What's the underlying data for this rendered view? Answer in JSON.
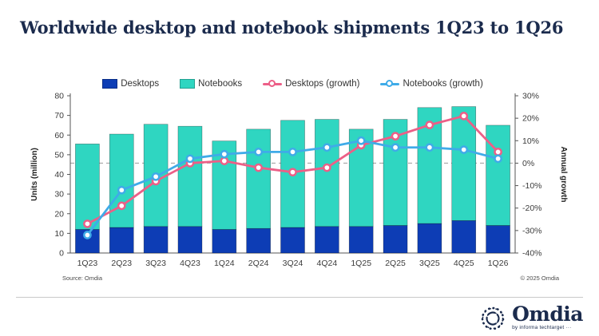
{
  "title": "Worldwide desktop and notebook shipments 1Q23 to 1Q26",
  "source_note": "Source: Omdia",
  "copyright_note": "© 2025 Omdia",
  "logo": {
    "name": "Omdia",
    "tagline": "by informa techtarget ···"
  },
  "legend": [
    {
      "label": "Desktops",
      "marker": "square",
      "color_key": "desktops"
    },
    {
      "label": "Notebooks",
      "marker": "square",
      "color_key": "notebooks"
    },
    {
      "label": "Desktops (growth)",
      "marker": "line-circle",
      "color_key": "desktops_growth"
    },
    {
      "label": "Notebooks (growth)",
      "marker": "line-circle",
      "color_key": "notebooks_growth"
    }
  ],
  "colors": {
    "desktops": "#0d3db5",
    "notebooks": "#2fd6c1",
    "desktops_growth": "#ec5f87",
    "notebooks_growth": "#3fabe8",
    "navy": "#1b2b4d",
    "axis_text": "#3c3c3c",
    "zero_line": "#9b9b9b"
  },
  "chart_data": {
    "type": "bar",
    "subtype": "stacked-bars-with-growth-lines",
    "categories": [
      "1Q23",
      "2Q23",
      "3Q23",
      "4Q23",
      "1Q24",
      "2Q24",
      "3Q24",
      "4Q24",
      "1Q25",
      "2Q25",
      "3Q25",
      "4Q25",
      "1Q26"
    ],
    "series": [
      {
        "name": "Desktops",
        "type": "bar",
        "stack": "units",
        "axis": "left",
        "values": [
          12,
          13,
          13.5,
          13.5,
          12,
          12.5,
          13,
          13.5,
          13.5,
          14,
          15,
          16.5,
          14
        ]
      },
      {
        "name": "Notebooks",
        "type": "bar",
        "stack": "units",
        "axis": "left",
        "values": [
          43.5,
          47.5,
          52,
          51,
          45,
          50.5,
          54.5,
          54.5,
          49.5,
          54,
          59,
          58,
          51
        ]
      },
      {
        "name": "Desktops (growth)",
        "type": "line",
        "axis": "right",
        "unit": "%",
        "values": [
          -27,
          -19,
          -8,
          0,
          1,
          -2,
          -4,
          -2,
          8,
          12,
          17,
          21,
          5
        ]
      },
      {
        "name": "Notebooks (growth)",
        "type": "line",
        "axis": "right",
        "unit": "%",
        "values": [
          -32,
          -12,
          -6,
          2,
          4,
          5,
          5,
          7,
          10,
          7,
          7,
          6,
          2
        ]
      }
    ],
    "left_axis": {
      "label": "Units (million)",
      "min": 0,
      "max": 80,
      "step": 10
    },
    "right_axis": {
      "label": "Annual growth",
      "min": -40,
      "max": 30,
      "step": 10,
      "format": "percent"
    },
    "grid": "off",
    "zero_reference_line": {
      "at_right_axis_value": 0,
      "style": "dashed"
    },
    "legend_position": "top-center"
  }
}
